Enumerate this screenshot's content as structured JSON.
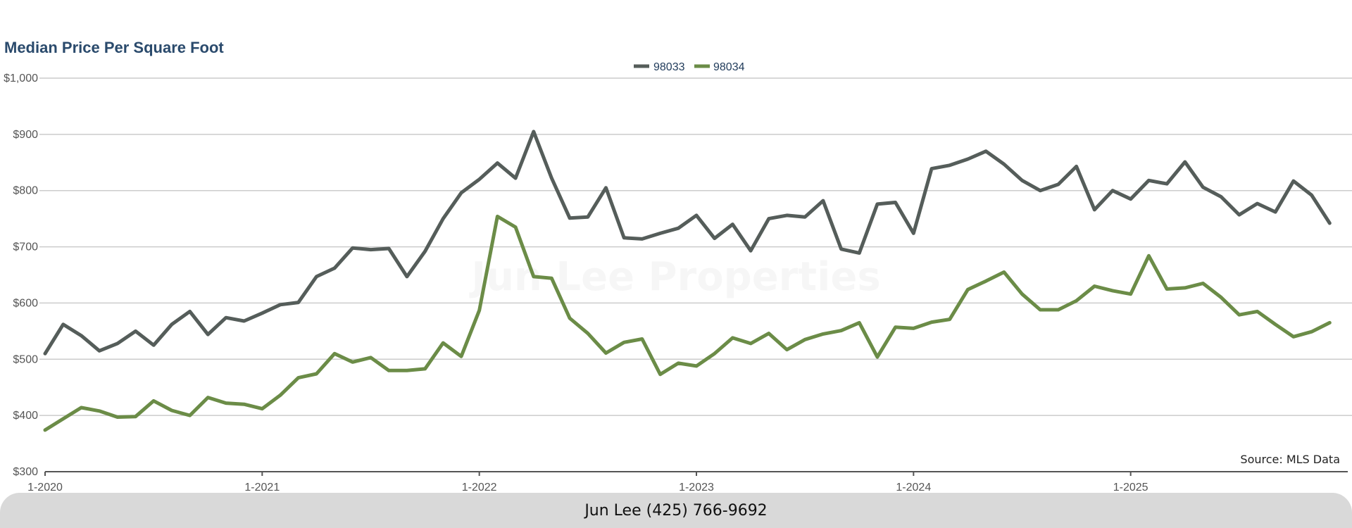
{
  "colors": {
    "title": "#2a4a6c",
    "series_98033": "#555d5a",
    "series_98034": "#6b8c47",
    "grid": "#cccccc",
    "footer_bg": "#d9d9d9"
  },
  "footer": {
    "text": "Jun Lee (425) 766-9692"
  },
  "chart_data": {
    "type": "line",
    "title": "Median Price Per Square Foot",
    "watermark": "Jun Lee Properties",
    "source": "Source: MLS Data",
    "xlabel": "",
    "ylabel": "",
    "ylim": [
      300,
      1000
    ],
    "y_ticks": [
      300,
      400,
      500,
      600,
      700,
      800,
      900,
      1000
    ],
    "y_tick_labels": [
      "$300",
      "$400",
      "$500",
      "$600",
      "$700",
      "$800",
      "$900",
      "$1,000"
    ],
    "x_tick_labels": [
      "1-2020",
      "1-2021",
      "1-2022",
      "1-2023",
      "1-2024",
      "1-2025"
    ],
    "x_tick_months": [
      "2020-01",
      "2021-01",
      "2022-01",
      "2023-01",
      "2024-01",
      "2025-01"
    ],
    "x_start": "2020-01",
    "x_end": "2025-12",
    "grid": true,
    "legend_position": "top-center",
    "series": [
      {
        "name": "98033",
        "color": "#555d5a",
        "values": [
          510,
          562,
          542,
          515,
          528,
          550,
          525,
          562,
          585,
          544,
          574,
          568,
          582,
          597,
          601,
          647,
          662,
          698,
          695,
          697,
          647,
          692,
          750,
          796,
          820,
          849,
          822,
          905,
          822,
          751,
          753,
          805,
          716,
          714,
          724,
          733,
          756,
          715,
          740,
          693,
          750,
          756,
          753,
          782,
          696,
          689,
          776,
          779,
          724,
          839,
          845,
          856,
          870,
          847,
          818,
          800,
          811,
          843,
          766,
          800,
          785,
          818,
          812,
          851,
          806,
          789,
          757,
          777,
          762,
          817,
          792,
          742
        ]
      },
      {
        "name": "98034",
        "color": "#6b8c47",
        "values": [
          374,
          394,
          414,
          408,
          397,
          398,
          426,
          409,
          400,
          432,
          422,
          420,
          412,
          436,
          467,
          474,
          510,
          495,
          503,
          480,
          480,
          483,
          529,
          505,
          587,
          754,
          735,
          647,
          644,
          573,
          546,
          511,
          530,
          536,
          473,
          493,
          488,
          510,
          538,
          528,
          546,
          517,
          535,
          545,
          551,
          565,
          504,
          557,
          555,
          566,
          571,
          624,
          639,
          655,
          616,
          588,
          588,
          604,
          630,
          622,
          616,
          684,
          625,
          627,
          635,
          610,
          579,
          585,
          562,
          540,
          549,
          565
        ]
      }
    ]
  }
}
